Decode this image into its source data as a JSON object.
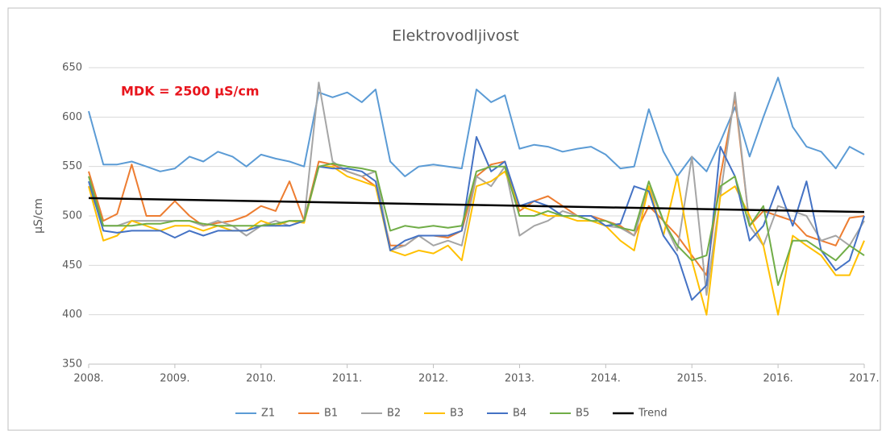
{
  "chart_data": {
    "type": "line",
    "title": "Elektrovodljivost",
    "y_label": "µS/cm",
    "annotation": "MDK = 2500 µS/cm",
    "x": [
      2008,
      2008.17,
      2008.33,
      2008.5,
      2008.67,
      2008.83,
      2009,
      2009.17,
      2009.33,
      2009.5,
      2009.67,
      2009.83,
      2010,
      2010.17,
      2010.33,
      2010.5,
      2010.67,
      2010.83,
      2011,
      2011.17,
      2011.33,
      2011.5,
      2011.67,
      2011.83,
      2012,
      2012.17,
      2012.33,
      2012.5,
      2012.67,
      2012.83,
      2013,
      2013.17,
      2013.33,
      2013.5,
      2013.67,
      2013.83,
      2014,
      2014.17,
      2014.33,
      2014.5,
      2014.67,
      2014.83,
      2015,
      2015.17,
      2015.33,
      2015.5,
      2015.67,
      2015.83,
      2016,
      2016.17,
      2016.33,
      2016.5,
      2016.67,
      2016.83,
      2017
    ],
    "series": [
      {
        "name": "Z1",
        "color": "#5b9bd5",
        "values": [
          606,
          552,
          552,
          555,
          550,
          545,
          548,
          560,
          555,
          565,
          560,
          550,
          562,
          558,
          555,
          550,
          625,
          620,
          625,
          615,
          628,
          555,
          540,
          550,
          552,
          550,
          548,
          628,
          615,
          622,
          568,
          572,
          570,
          565,
          568,
          570,
          562,
          548,
          550,
          608,
          565,
          540,
          560,
          545,
          575,
          610,
          560,
          600,
          640,
          590,
          570,
          565,
          548,
          570,
          562
        ]
      },
      {
        "name": "B1",
        "color": "#ed7d31",
        "values": [
          545,
          495,
          502,
          552,
          500,
          500,
          515,
          500,
          490,
          493,
          495,
          500,
          510,
          505,
          535,
          495,
          555,
          552,
          545,
          540,
          530,
          470,
          470,
          480,
          480,
          478,
          485,
          540,
          552,
          555,
          505,
          515,
          520,
          510,
          500,
          500,
          495,
          490,
          480,
          510,
          495,
          480,
          460,
          440,
          540,
          620,
          490,
          505,
          500,
          495,
          480,
          475,
          470,
          498,
          500
        ]
      },
      {
        "name": "B2",
        "color": "#a5a5a5",
        "values": [
          530,
          490,
          490,
          495,
          495,
          495,
          495,
          495,
          490,
          495,
          490,
          480,
          490,
          495,
          490,
          495,
          635,
          555,
          545,
          540,
          545,
          465,
          470,
          480,
          470,
          475,
          470,
          540,
          530,
          550,
          480,
          490,
          495,
          505,
          500,
          500,
          490,
          488,
          480,
          530,
          495,
          465,
          560,
          420,
          520,
          625,
          490,
          470,
          510,
          505,
          500,
          475,
          480,
          470,
          495
        ]
      },
      {
        "name": "B3",
        "color": "#ffc000",
        "values": [
          530,
          475,
          480,
          495,
          490,
          485,
          490,
          490,
          485,
          490,
          485,
          485,
          495,
          490,
          495,
          493,
          550,
          550,
          540,
          535,
          530,
          465,
          460,
          465,
          462,
          470,
          455,
          530,
          535,
          545,
          510,
          505,
          500,
          500,
          495,
          495,
          490,
          475,
          465,
          530,
          480,
          540,
          455,
          400,
          520,
          530,
          500,
          470,
          400,
          480,
          470,
          460,
          440,
          440,
          475
        ]
      },
      {
        "name": "B4",
        "color": "#4472c4",
        "values": [
          535,
          485,
          483,
          485,
          485,
          485,
          478,
          485,
          480,
          485,
          485,
          485,
          490,
          490,
          490,
          495,
          550,
          548,
          548,
          545,
          535,
          465,
          475,
          480,
          480,
          480,
          485,
          580,
          545,
          555,
          510,
          515,
          510,
          500,
          500,
          500,
          490,
          492,
          530,
          525,
          480,
          460,
          415,
          430,
          570,
          540,
          475,
          490,
          530,
          490,
          535,
          465,
          445,
          455,
          500
        ]
      },
      {
        "name": "B5",
        "color": "#70ad47",
        "values": [
          540,
          490,
          490,
          490,
          492,
          492,
          495,
          495,
          492,
          490,
          490,
          490,
          490,
          492,
          495,
          495,
          550,
          553,
          550,
          548,
          545,
          485,
          490,
          488,
          490,
          488,
          490,
          545,
          550,
          550,
          500,
          500,
          505,
          500,
          500,
          495,
          495,
          488,
          485,
          535,
          495,
          470,
          455,
          460,
          530,
          540,
          490,
          510,
          430,
          475,
          475,
          465,
          455,
          470,
          460
        ]
      },
      {
        "name": "Trend",
        "color": "#000000",
        "x": [
          2008,
          2017
        ],
        "values": [
          518,
          504
        ]
      }
    ],
    "xlim": [
      2008,
      2017
    ],
    "xticks": [
      {
        "value": 2008,
        "label": "2008."
      },
      {
        "value": 2009,
        "label": "2009."
      },
      {
        "value": 2010,
        "label": "2010."
      },
      {
        "value": 2011,
        "label": "2011."
      },
      {
        "value": 2012,
        "label": "2012."
      },
      {
        "value": 2013,
        "label": "2013."
      },
      {
        "value": 2014,
        "label": "2014."
      },
      {
        "value": 2015,
        "label": "2015."
      },
      {
        "value": 2016,
        "label": "2016."
      },
      {
        "value": 2017,
        "label": "2017."
      }
    ],
    "ylim": [
      350,
      650
    ],
    "yticks": [
      350,
      400,
      450,
      500,
      550,
      600,
      650
    ],
    "grid": true
  }
}
